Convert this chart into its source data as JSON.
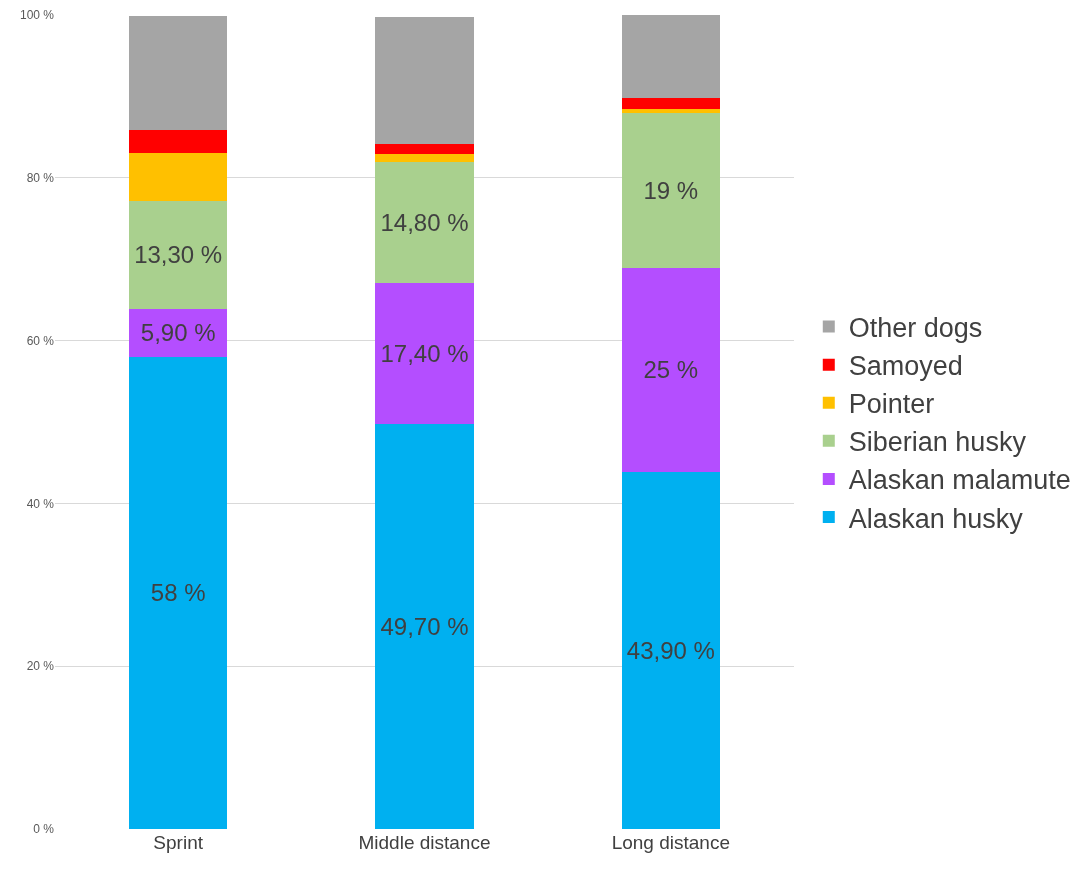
{
  "chart_data": {
    "type": "bar",
    "stacked": true,
    "categories": [
      "Sprint",
      "Middle distance",
      "Long distance"
    ],
    "series": [
      {
        "name": "Alaskan husky",
        "color": "#00b0f0",
        "values": [
          58,
          49.7,
          43.9
        ],
        "value_labels": [
          "58 %",
          "49,70 %",
          "43,90 %"
        ]
      },
      {
        "name": "Alaskan malamute",
        "color": "#b44eff",
        "values": [
          5.9,
          17.4,
          25
        ],
        "value_labels": [
          "5,90 %",
          "17,40 %",
          "25 %"
        ]
      },
      {
        "name": "Siberian husky",
        "color": "#a9d08e",
        "values": [
          13.3,
          14.8,
          19
        ],
        "value_labels": [
          "13,30 %",
          "14,80 %",
          "19 %"
        ]
      },
      {
        "name": "Pointer",
        "color": "#ffc000",
        "values": [
          5.8,
          1.0,
          0.5
        ]
      },
      {
        "name": "Samoyed",
        "color": "#ff0000",
        "values": [
          2.9,
          1.3,
          1.4
        ]
      },
      {
        "name": "Other dogs",
        "color": "#a5a5a5",
        "values": [
          14.0,
          15.5,
          10.2
        ]
      }
    ],
    "ylim": [
      0,
      100
    ],
    "yticks": [
      {
        "value": 0,
        "label": "0 %"
      },
      {
        "value": 20,
        "label": "20 %"
      },
      {
        "value": 40,
        "label": "40 %"
      },
      {
        "value": 60,
        "label": "60 %"
      },
      {
        "value": 80,
        "label": "80 %"
      },
      {
        "value": 100,
        "label": "100 %"
      }
    ],
    "grid": "y",
    "legend": "right"
  }
}
